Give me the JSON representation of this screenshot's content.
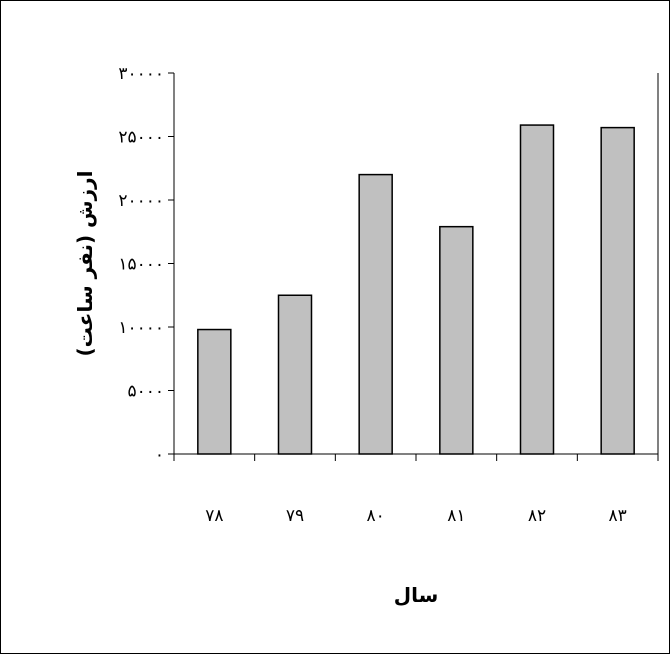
{
  "chart_data": {
    "type": "bar",
    "categories": [
      "۷۸",
      "۷۹",
      "۸۰",
      "۸۱",
      "۸۲",
      "۸۳"
    ],
    "values": [
      9800,
      12500,
      22000,
      17900,
      25900,
      25700
    ],
    "ylim": [
      0,
      30000
    ],
    "yticks": [
      0,
      5000,
      10000,
      15000,
      20000,
      25000,
      30000
    ],
    "ytick_labels": [
      "۰",
      "۵۰۰۰",
      "۱۰۰۰۰",
      "۱۵۰۰۰",
      "۲۰۰۰۰",
      "۲۵۰۰۰",
      "۳۰۰۰۰"
    ],
    "xlabel": "سال",
    "ylabel": "ارزش (نفر ساعت)",
    "grid": false,
    "legend": "none",
    "colors": {
      "bar_fill": "#c0c0c0",
      "bar_stroke": "#000000",
      "axis": "#000000"
    }
  }
}
